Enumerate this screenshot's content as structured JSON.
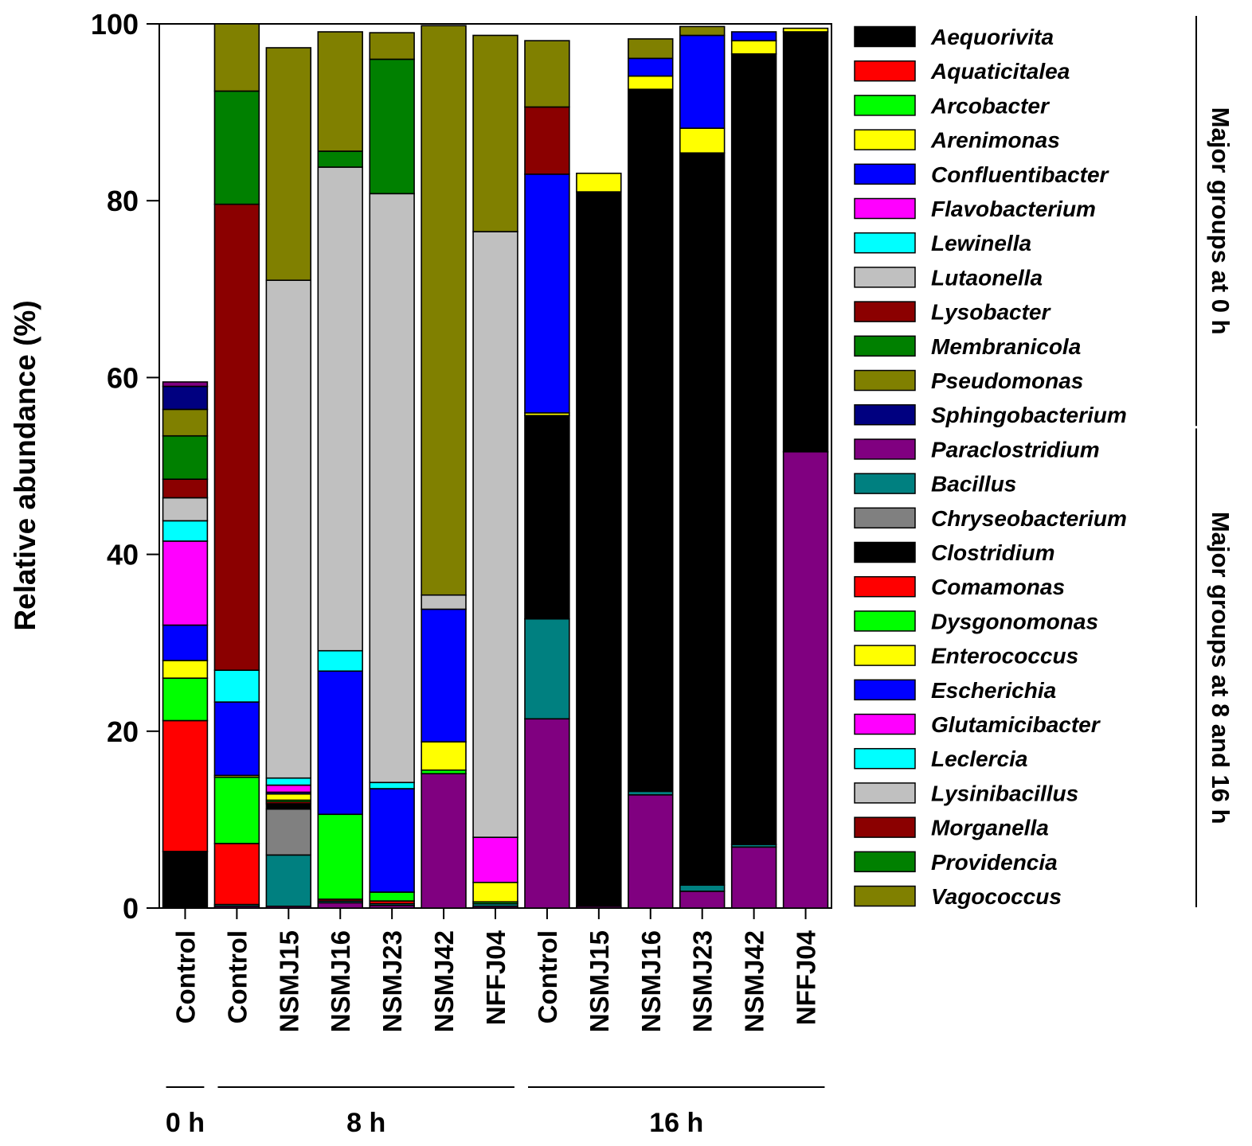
{
  "chart_data": {
    "type": "bar",
    "stacked": true,
    "ylabel": "Relative abundance (%)",
    "xlabel": "",
    "ylim": [
      0,
      100
    ],
    "yticks": [
      0,
      20,
      40,
      60,
      80,
      100
    ],
    "grid": false,
    "legend_position": "right",
    "categories": [
      "Control",
      "Control",
      "NSMJ15",
      "NSMJ16",
      "NSMJ23",
      "NSMJ42",
      "NFFJ04",
      "Control",
      "NSMJ15",
      "NSMJ16",
      "NSMJ23",
      "NSMJ42",
      "NFFJ04"
    ],
    "time_groups": [
      {
        "label": "0 h",
        "categories": [
          0
        ]
      },
      {
        "label": "8 h",
        "categories": [
          1,
          2,
          3,
          4,
          5,
          6
        ]
      },
      {
        "label": "16 h",
        "categories": [
          7,
          8,
          9,
          10,
          11,
          12
        ]
      }
    ],
    "legend_groups": [
      {
        "label": "Major groups at 0 h",
        "series": [
          0,
          1,
          2,
          3,
          4,
          5,
          6,
          7,
          8,
          9,
          10,
          11
        ]
      },
      {
        "label": "Major groups at 8 and 16 h",
        "series": [
          12,
          13,
          14,
          15,
          16,
          17,
          18,
          19,
          20,
          21,
          22,
          23,
          24,
          25
        ]
      }
    ],
    "series": [
      {
        "name": "Aequorivita",
        "color": "#000000",
        "values": [
          6.4,
          0,
          0,
          0,
          0,
          0,
          0,
          0,
          0,
          0,
          0,
          0,
          0
        ]
      },
      {
        "name": "Aquaticitalea",
        "color": "#ff0000",
        "values": [
          14.8,
          0,
          0,
          0,
          0,
          0,
          0,
          0,
          0,
          0,
          0,
          0,
          0
        ]
      },
      {
        "name": "Arcobacter",
        "color": "#00ff00",
        "values": [
          4.8,
          0,
          0,
          0,
          0,
          0,
          0,
          0,
          0,
          0,
          0,
          0,
          0
        ]
      },
      {
        "name": "Arenimonas",
        "color": "#ffff00",
        "values": [
          2.0,
          0,
          0,
          0,
          0,
          0,
          0,
          0,
          0,
          0,
          0,
          0,
          0
        ]
      },
      {
        "name": "Confluentibacter",
        "color": "#0000ff",
        "values": [
          4.0,
          0,
          0,
          0,
          0,
          0,
          0,
          0,
          0,
          0,
          0,
          0,
          0
        ]
      },
      {
        "name": "Flavobacterium",
        "color": "#ff00ff",
        "values": [
          9.5,
          0,
          0,
          0,
          0,
          0,
          0,
          0,
          0,
          0,
          0,
          0,
          0
        ]
      },
      {
        "name": "Lewinella",
        "color": "#00ffff",
        "values": [
          2.3,
          0,
          0,
          0,
          0,
          0,
          0,
          0,
          0,
          0,
          0,
          0,
          0
        ]
      },
      {
        "name": "Lutaonella",
        "color": "#c0c0c0",
        "values": [
          2.6,
          0,
          0,
          0,
          0,
          0,
          0,
          0,
          0,
          0,
          0,
          0,
          0
        ]
      },
      {
        "name": "Lysobacter",
        "color": "#8b0000",
        "values": [
          2.1,
          0,
          0,
          0,
          0,
          0,
          0,
          0,
          0,
          0,
          0,
          0,
          0
        ]
      },
      {
        "name": "Membranicola",
        "color": "#008000",
        "values": [
          4.9,
          0,
          0,
          0,
          0,
          0,
          0,
          0,
          0,
          0,
          0,
          0,
          0
        ]
      },
      {
        "name": "Pseudomonas",
        "color": "#808000",
        "values": [
          3.0,
          0,
          0,
          0,
          0,
          0,
          0,
          0,
          0,
          0,
          0,
          0,
          0
        ]
      },
      {
        "name": "Sphingobacterium",
        "color": "#000080",
        "values": [
          2.6,
          0,
          0,
          0,
          0,
          0,
          0,
          0,
          0,
          0,
          0,
          0,
          0
        ]
      },
      {
        "name": "Paraclostridium",
        "color": "#800080",
        "values": [
          0.5,
          0.2,
          0.2,
          0.6,
          0.3,
          15.2,
          0.2,
          21.4,
          0.2,
          12.8,
          1.9,
          6.9,
          51.6
        ]
      },
      {
        "name": "Bacillus",
        "color": "#008080",
        "values": [
          0,
          0.2,
          5.8,
          0.2,
          0.2,
          0,
          0.3,
          11.3,
          0,
          0.4,
          0.7,
          0.3,
          0
        ]
      },
      {
        "name": "Chryseobacterium",
        "color": "#808080",
        "values": [
          0,
          0,
          5.2,
          0,
          0,
          0,
          0,
          0,
          0,
          0,
          0,
          0,
          0
        ]
      },
      {
        "name": "Clostridium",
        "color": "#000000",
        "values": [
          0,
          0,
          0.6,
          0,
          0,
          0,
          0,
          23.0,
          80.8,
          79.4,
          82.8,
          89.4,
          47.5
        ]
      },
      {
        "name": "Comamonas",
        "color": "#ff0000",
        "values": [
          0,
          6.9,
          0.2,
          0.2,
          0.3,
          0,
          0,
          0,
          0,
          0,
          0,
          0,
          0
        ]
      },
      {
        "name": "Dysgonomonas",
        "color": "#00ff00",
        "values": [
          0,
          7.5,
          0.2,
          9.6,
          1.0,
          0.4,
          0.2,
          0,
          0,
          0,
          0,
          0,
          0
        ]
      },
      {
        "name": "Enterococcus",
        "color": "#ffff00",
        "values": [
          0,
          0.2,
          0.7,
          0,
          0,
          3.2,
          2.2,
          0.3,
          2.1,
          1.5,
          2.8,
          1.5,
          0.4
        ]
      },
      {
        "name": "Escherichia",
        "color": "#0000ff",
        "values": [
          0,
          8.3,
          0.2,
          16.2,
          11.7,
          15.0,
          0,
          27.0,
          0,
          2.0,
          10.5,
          1.0,
          0
        ]
      },
      {
        "name": "Glutamicibacter",
        "color": "#ff00ff",
        "values": [
          0,
          0,
          0.8,
          0,
          0,
          0,
          5.1,
          0,
          0,
          0,
          0,
          0,
          0
        ]
      },
      {
        "name": "Leclercia",
        "color": "#00ffff",
        "values": [
          0,
          3.6,
          0.8,
          2.3,
          0.7,
          0,
          0,
          0,
          0,
          0,
          0,
          0,
          0
        ]
      },
      {
        "name": "Lysinibacillus",
        "color": "#c0c0c0",
        "values": [
          0,
          0,
          56.3,
          54.7,
          66.6,
          1.6,
          68.5,
          0,
          0,
          0,
          0,
          0,
          0
        ]
      },
      {
        "name": "Morganella",
        "color": "#8b0000",
        "values": [
          0,
          52.7,
          0,
          0,
          0,
          0,
          0,
          7.6,
          0,
          0,
          0,
          0,
          0
        ]
      },
      {
        "name": "Providencia",
        "color": "#008000",
        "values": [
          0,
          12.8,
          0,
          1.8,
          15.2,
          0,
          0,
          0,
          0,
          0,
          0,
          0,
          0
        ]
      },
      {
        "name": "Vagococcus",
        "color": "#808000",
        "values": [
          0,
          7.6,
          26.3,
          13.5,
          3.0,
          64.4,
          22.2,
          7.5,
          0,
          2.2,
          1.0,
          0,
          0
        ]
      }
    ]
  }
}
